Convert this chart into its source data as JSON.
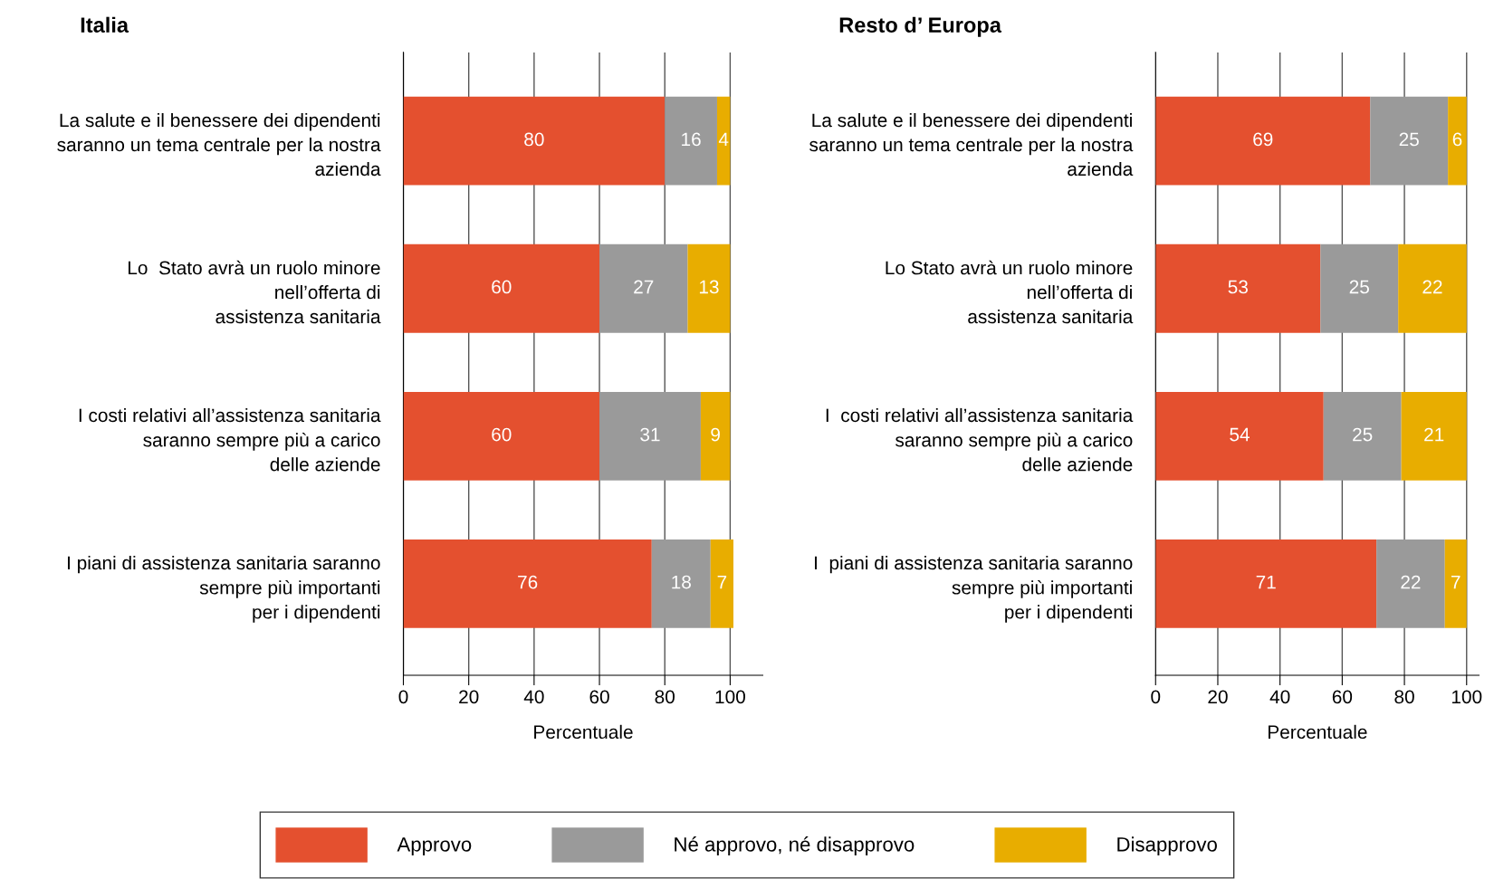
{
  "chart_data": [
    {
      "type": "bar",
      "orientation": "horizontal",
      "stacked": true,
      "title": "Italia",
      "xlabel": "Percentuale",
      "categories": [
        "La salute e il benessere dei dipendenti\nsaranno un tema centrale per la nostra\nazienda",
        "Lo  Stato avrà un ruolo minore\nnell’offerta di\nassistenza sanitaria",
        "I costi relativi all’assistenza sanitaria\nsaranno sempre più a carico\ndelle aziende",
        "I piani di assistenza sanitaria saranno\nsempre più importanti\nper i dipendenti"
      ],
      "series": [
        {
          "name": "Approvo",
          "color": "#e4502f",
          "values": [
            80,
            60,
            60,
            76
          ]
        },
        {
          "name": "Né approvo, né disapprovo",
          "color": "#9a9a9a",
          "values": [
            16,
            27,
            31,
            18
          ]
        },
        {
          "name": "Disapprovo",
          "color": "#e8ad00",
          "values": [
            4,
            13,
            9,
            7
          ]
        }
      ],
      "xlim": [
        0,
        110
      ],
      "xticks": [
        0,
        20,
        40,
        60,
        80,
        100
      ],
      "grid": "x",
      "data_labels": true,
      "legend": "bottom"
    },
    {
      "type": "bar",
      "orientation": "horizontal",
      "stacked": true,
      "title": "Resto d’ Europa",
      "xlabel": "Percentuale",
      "categories": [
        "La salute e il benessere dei dipendenti\nsaranno un tema centrale per la nostra\nazienda",
        "Lo Stato avrà un ruolo minore\nnell’offerta di\nassistenza sanitaria",
        "I  costi relativi all’assistenza sanitaria\nsaranno sempre più a carico\ndelle aziende",
        "I  piani di assistenza sanitaria saranno\nsempre più importanti\nper i dipendenti"
      ],
      "series": [
        {
          "color": "#e4502f",
          "values": [
            69,
            53,
            54,
            71
          ]
        },
        {
          "color": "#9a9a9a",
          "values": [
            25,
            25,
            25,
            22
          ]
        },
        {
          "color": "#e8ad00",
          "values": [
            6,
            22,
            21,
            7
          ]
        }
      ],
      "xlim": [
        0,
        104
      ],
      "xticks": [
        0,
        20,
        40,
        60,
        80,
        100
      ],
      "grid": "x",
      "data_labels": true
    }
  ]
}
